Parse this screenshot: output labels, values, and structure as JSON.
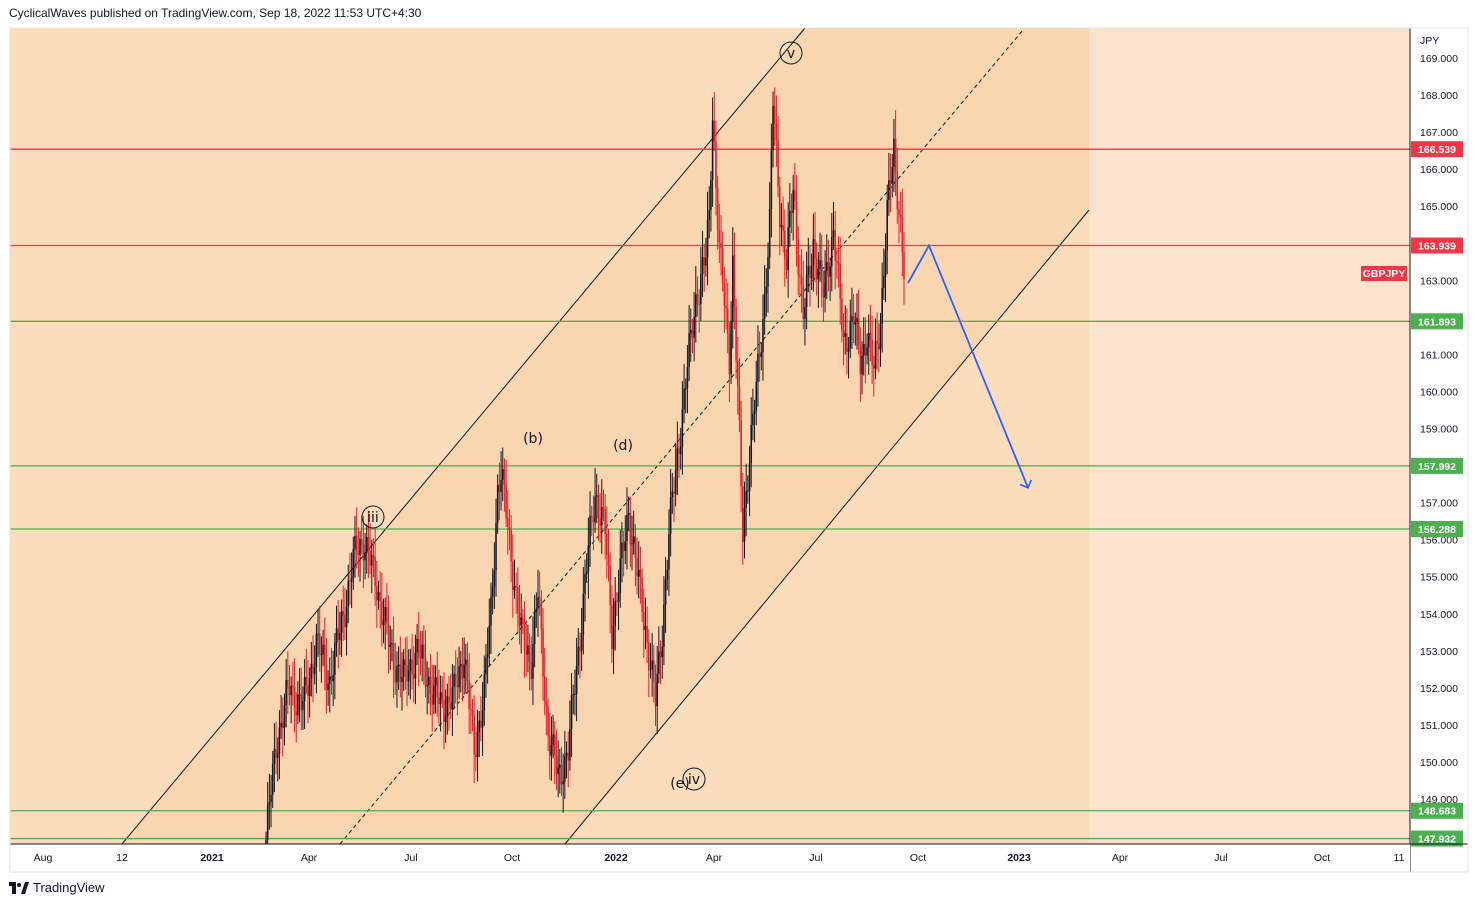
{
  "header": {
    "published_text": "CyclicalWaves published on TradingView.com, Sep 18, 2022 11:53 UTC+4:30"
  },
  "footer": {
    "brand": "TradingView",
    "logo": "tradingview-logo-icon"
  },
  "chart_data": {
    "type": "candlestick",
    "symbol": "GBPJPY",
    "currency": "JPY",
    "ylim": [
      147.9,
      169.6
    ],
    "y_ticks": [
      149.0,
      150.0,
      151.0,
      152.0,
      153.0,
      154.0,
      155.0,
      156.0,
      157.0,
      158.0,
      159.0,
      160.0,
      161.0,
      162.0,
      163.0,
      164.0,
      165.0,
      166.0,
      167.0,
      168.0,
      169.0
    ],
    "y_tick_labels": [
      "149.000",
      "150.000",
      "151.000",
      "152.000",
      "153.000",
      "154.000",
      "155.000",
      "156.000",
      "157.000",
      "158.000",
      "159.000",
      "160.000",
      "161.000",
      "162.000",
      "163.000",
      "164.000",
      "165.000",
      "166.000",
      "167.000",
      "168.000",
      "169.000"
    ],
    "x_ticks": [
      {
        "label": "Aug",
        "bold": false
      },
      {
        "label": "12",
        "bold": false
      },
      {
        "label": "2021",
        "bold": true
      },
      {
        "label": "Apr",
        "bold": false
      },
      {
        "label": "Jul",
        "bold": false
      },
      {
        "label": "Oct",
        "bold": false
      },
      {
        "label": "2022",
        "bold": true
      },
      {
        "label": "Apr",
        "bold": false
      },
      {
        "label": "Jul",
        "bold": false
      },
      {
        "label": "Oct",
        "bold": false
      },
      {
        "label": "2023",
        "bold": true
      },
      {
        "label": "Apr",
        "bold": false
      },
      {
        "label": "Jul",
        "bold": false
      },
      {
        "label": "Oct",
        "bold": false
      },
      {
        "label": "11",
        "bold": false
      }
    ],
    "horizontal_levels": [
      {
        "value": 166.539,
        "label": "166.539",
        "color": "#f23645"
      },
      {
        "value": 163.939,
        "label": "163.939",
        "color": "#f23645"
      },
      {
        "value": 161.893,
        "label": "161.893",
        "color": "#4caf50"
      },
      {
        "value": 157.992,
        "label": "157.992",
        "color": "#4caf50"
      },
      {
        "value": 156.288,
        "label": "156.288",
        "color": "#4caf50"
      },
      {
        "value": 148.683,
        "label": "148.683",
        "color": "#4caf50"
      },
      {
        "value": 147.932,
        "label": "147.932",
        "color": "#4caf50"
      }
    ],
    "symbol_tag": {
      "label": "GBPJPY",
      "value": 163.28,
      "color": "#f23645"
    },
    "wave_labels": [
      {
        "label": "iii",
        "circled": true
      },
      {
        "label": "(b)",
        "circled": false
      },
      {
        "label": "(d)",
        "circled": false
      },
      {
        "label": "v",
        "circled": true
      },
      {
        "label": "(e)",
        "circled": false
      },
      {
        "label": "iv",
        "circled": true
      }
    ],
    "candle_keypoints": [
      [
        0,
        147.9
      ],
      [
        6,
        150.5
      ],
      [
        14,
        152.0
      ],
      [
        22,
        151.5
      ],
      [
        30,
        153.2
      ],
      [
        38,
        152.2
      ],
      [
        46,
        154.0
      ],
      [
        54,
        155.8
      ],
      [
        58,
        156.0
      ],
      [
        66,
        154.8
      ],
      [
        74,
        153.0
      ],
      [
        82,
        152.2
      ],
      [
        90,
        153.0
      ],
      [
        96,
        152.3
      ],
      [
        104,
        151.5
      ],
      [
        112,
        151.8
      ],
      [
        118,
        153.0
      ],
      [
        124,
        150.2
      ],
      [
        130,
        152.0
      ],
      [
        134,
        154.0
      ],
      [
        138,
        157.4
      ],
      [
        140,
        157.8
      ],
      [
        146,
        155.6
      ],
      [
        152,
        153.4
      ],
      [
        158,
        152.8
      ],
      [
        162,
        154.5
      ],
      [
        168,
        150.8
      ],
      [
        174,
        149.6
      ],
      [
        180,
        150.3
      ],
      [
        186,
        153.0
      ],
      [
        192,
        155.7
      ],
      [
        196,
        157.3
      ],
      [
        202,
        156.2
      ],
      [
        206,
        153.6
      ],
      [
        212,
        155.4
      ],
      [
        216,
        156.8
      ],
      [
        222,
        154.8
      ],
      [
        228,
        153.0
      ],
      [
        232,
        151.6
      ],
      [
        236,
        153.6
      ],
      [
        240,
        156.2
      ],
      [
        244,
        157.8
      ],
      [
        248,
        159.5
      ],
      [
        252,
        161.0
      ],
      [
        256,
        162.5
      ],
      [
        262,
        163.6
      ],
      [
        264,
        164.7
      ],
      [
        266,
        167.6
      ],
      [
        270,
        163.8
      ],
      [
        276,
        161.0
      ],
      [
        278,
        163.5
      ],
      [
        284,
        156.2
      ],
      [
        288,
        158.4
      ],
      [
        292,
        160.0
      ],
      [
        296,
        162.0
      ],
      [
        300,
        164.5
      ],
      [
        302,
        167.8
      ],
      [
        306,
        165.0
      ],
      [
        310,
        163.4
      ],
      [
        314,
        165.5
      ],
      [
        320,
        162.0
      ],
      [
        326,
        164.0
      ],
      [
        332,
        162.6
      ],
      [
        338,
        164.4
      ],
      [
        344,
        161.3
      ],
      [
        350,
        162.0
      ],
      [
        354,
        160.8
      ],
      [
        358,
        161.6
      ],
      [
        362,
        160.5
      ],
      [
        366,
        162.0
      ],
      [
        370,
        164.8
      ],
      [
        374,
        166.5
      ],
      [
        378,
        164.5
      ],
      [
        380,
        163.2
      ]
    ],
    "wick_amplitude": 0.55,
    "projection": [
      [
        163.939,
        "peak"
      ],
      [
        157.4,
        "target"
      ]
    ]
  }
}
